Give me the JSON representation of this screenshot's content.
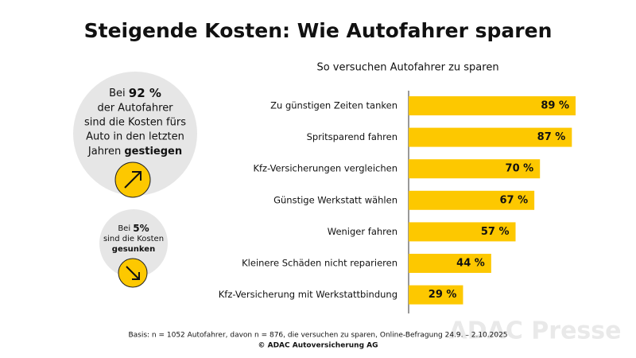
{
  "chart_data": {
    "type": "hbar",
    "title": "Steigende Kosten: Wie Autofahrer sparen",
    "subtitle": "So versuchen Autofahrer zu sparen",
    "categories": [
      "Zu günstigen Zeiten tanken",
      "Spritsparend fahren",
      "Kfz-Versicherungen vergleichen",
      "Günstige Werkstatt wählen",
      "Weniger fahren",
      "Kleinere Schäden nicht reparieren",
      "Kfz-Versicherung mit Werkstattbindung"
    ],
    "values": [
      89,
      87,
      70,
      67,
      57,
      44,
      29
    ],
    "value_labels": [
      "89 %",
      "87 %",
      "70 %",
      "67 %",
      "57 %",
      "44 %",
      "29 %"
    ],
    "color": "#fdc800"
  },
  "highlights": [
    {
      "lead": "Bei",
      "figure": "92 %",
      "lines": [
        "der Autofahrer",
        "sind die Kosten fürs",
        "Auto in den letzten"
      ],
      "tail": "Jahren",
      "emphasis": "gestiegen"
    },
    {
      "lead": "Bei",
      "figure": "5%",
      "lines": [
        "sind die Kosten"
      ],
      "emphasis": "gesunken"
    }
  ],
  "footer": {
    "basis": "Basis: n = 1052 Autofahrer, davon n = 876, die versuchen zu sparen, Online-Befragung 24.9. – 2.10.2025",
    "copyright": "© ADAC Autoversicherung AG"
  },
  "watermark": "ADAC Presse"
}
